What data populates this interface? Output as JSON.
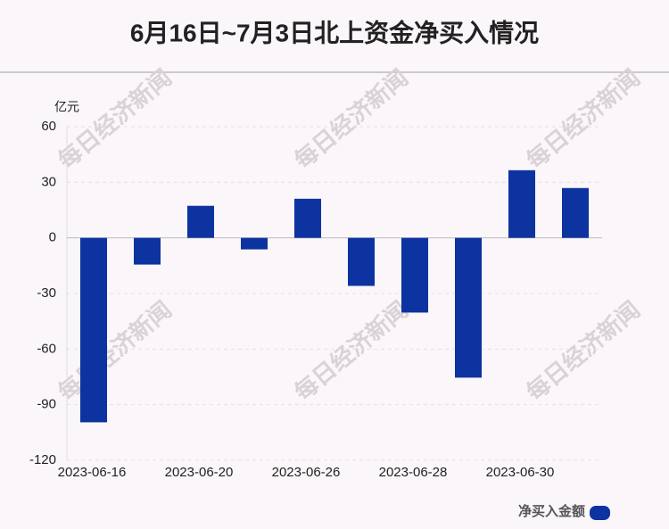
{
  "chart_data": {
    "type": "bar",
    "title": "6月16日~7月3日北上资金净买入情况",
    "y_label": "亿元",
    "watermark": "每日经济新闻",
    "categories": [
      "2023-06-16",
      null,
      "2023-06-20",
      null,
      "2023-06-26",
      null,
      "2023-06-28",
      null,
      "2023-06-30",
      null
    ],
    "series": [
      {
        "name": "净买入金额",
        "color": "#0d33a0",
        "values": [
          -99.5,
          -14.4,
          17.3,
          -6.2,
          21.1,
          -25.9,
          -40.3,
          -75.4,
          36.5,
          26.9
        ]
      }
    ],
    "ylim": [
      -120,
      60
    ],
    "yticks": [
      -120,
      -90,
      -60,
      -30,
      0,
      30,
      60
    ],
    "grid": true
  }
}
